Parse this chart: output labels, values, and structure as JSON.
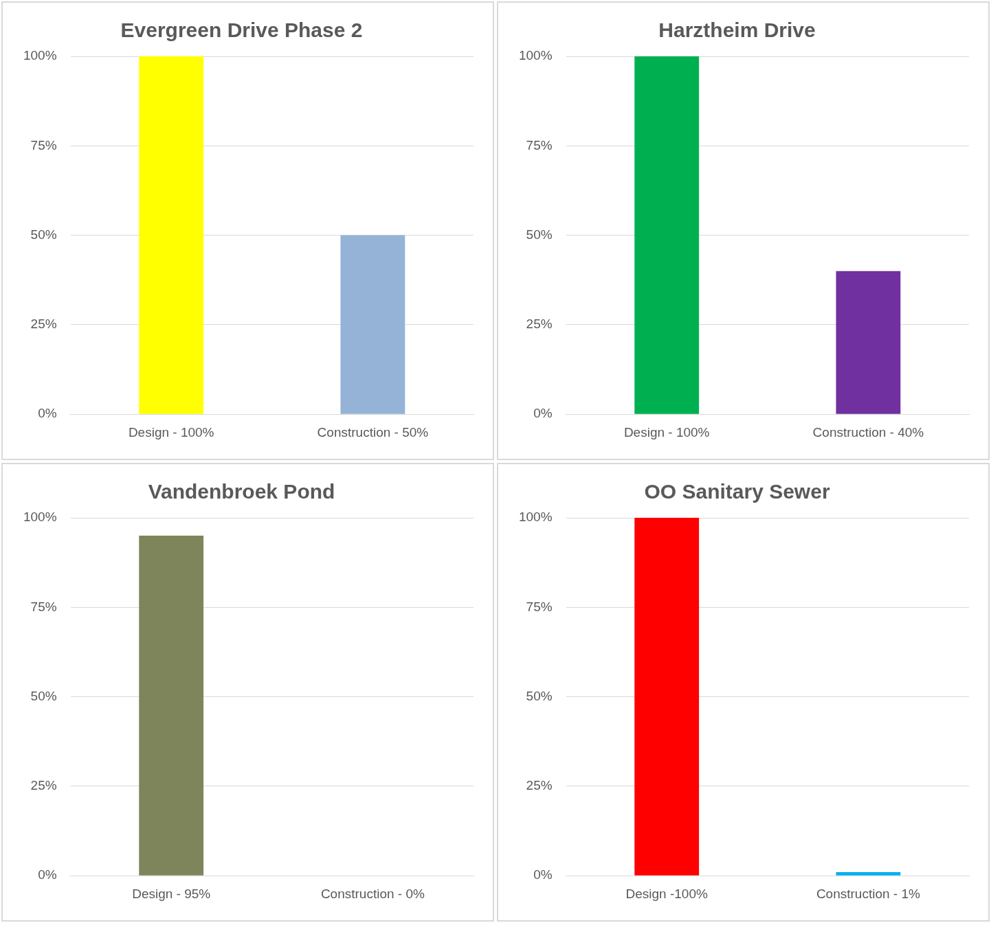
{
  "chart_data": [
    {
      "type": "bar",
      "title": "Evergreen Drive Phase 2",
      "categories": [
        "Design - 100%",
        "Construction - 50%"
      ],
      "values": [
        100,
        50
      ],
      "colors": [
        "#ffff00",
        "#95b3d7"
      ],
      "ylim": [
        0,
        100
      ],
      "yticks": [
        {
          "value": 0,
          "label": "0%"
        },
        {
          "value": 25,
          "label": "25%"
        },
        {
          "value": 50,
          "label": "50%"
        },
        {
          "value": 75,
          "label": "75%"
        },
        {
          "value": 100,
          "label": "100%"
        }
      ],
      "grid": "y",
      "legend": false
    },
    {
      "type": "bar",
      "title": "Harztheim Drive",
      "categories": [
        "Design - 100%",
        "Construction - 40%"
      ],
      "values": [
        100,
        40
      ],
      "colors": [
        "#00b050",
        "#7030a0"
      ],
      "ylim": [
        0,
        100
      ],
      "yticks": [
        {
          "value": 0,
          "label": "0%"
        },
        {
          "value": 25,
          "label": "25%"
        },
        {
          "value": 50,
          "label": "50%"
        },
        {
          "value": 75,
          "label": "75%"
        },
        {
          "value": 100,
          "label": "100%"
        }
      ],
      "grid": "y",
      "legend": false
    },
    {
      "type": "bar",
      "title": "Vandenbroek Pond",
      "categories": [
        "Design - 95%",
        "Construction - 0%"
      ],
      "values": [
        95,
        0
      ],
      "colors": [
        "#7f855a",
        "#95b3d7"
      ],
      "ylim": [
        0,
        100
      ],
      "yticks": [
        {
          "value": 0,
          "label": "0%"
        },
        {
          "value": 25,
          "label": "25%"
        },
        {
          "value": 50,
          "label": "50%"
        },
        {
          "value": 75,
          "label": "75%"
        },
        {
          "value": 100,
          "label": "100%"
        }
      ],
      "grid": "y",
      "legend": false
    },
    {
      "type": "bar",
      "title": "OO Sanitary Sewer",
      "categories": [
        "Design -100%",
        "Construction - 1%"
      ],
      "values": [
        100,
        1
      ],
      "colors": [
        "#ff0000",
        "#00b0f0"
      ],
      "ylim": [
        0,
        100
      ],
      "yticks": [
        {
          "value": 0,
          "label": "0%"
        },
        {
          "value": 25,
          "label": "25%"
        },
        {
          "value": 50,
          "label": "50%"
        },
        {
          "value": 75,
          "label": "75%"
        },
        {
          "value": 100,
          "label": "100%"
        }
      ],
      "grid": "y",
      "legend": false
    }
  ]
}
